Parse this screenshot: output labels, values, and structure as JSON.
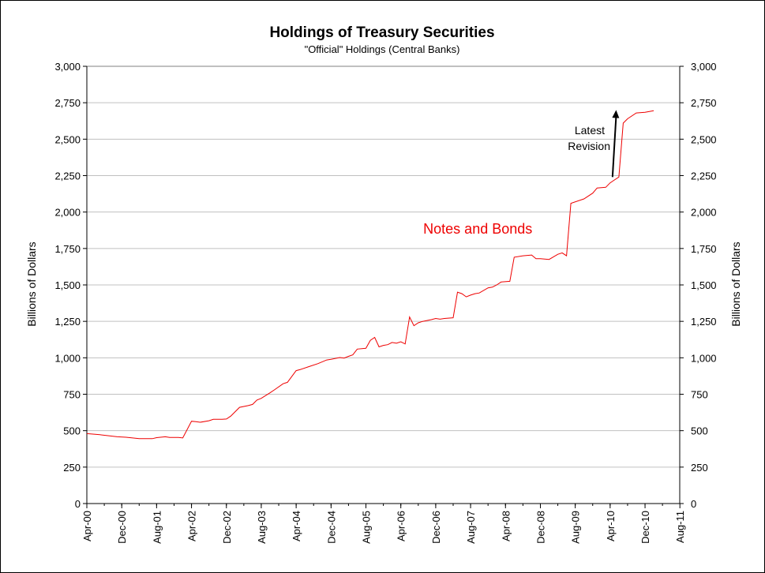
{
  "chart_data": {
    "type": "line",
    "title": "Holdings of Treasury Securities",
    "subtitle": "\"Official\" Holdings (Central Banks)",
    "ylabel": "Billions of Dollars",
    "ylabel_right": "Billions of Dollars",
    "xlabel": "",
    "ylim": [
      0,
      3000
    ],
    "y_ticks": [
      0,
      250,
      500,
      750,
      1000,
      1250,
      1500,
      1750,
      2000,
      2250,
      2500,
      2750,
      3000
    ],
    "y_tick_labels": [
      "0",
      "250",
      "500",
      "750",
      "1,000",
      "1,250",
      "1,500",
      "1,750",
      "2,000",
      "2,250",
      "2,500",
      "2,750",
      "3,000"
    ],
    "x_range": [
      2000.25,
      2011.58
    ],
    "x_ticks": [
      2000.25,
      2000.917,
      2001.583,
      2002.25,
      2002.917,
      2003.583,
      2004.25,
      2004.917,
      2005.583,
      2006.25,
      2006.917,
      2007.583,
      2008.25,
      2008.917,
      2009.583,
      2010.25,
      2010.917,
      2011.583
    ],
    "x_tick_labels": [
      "Apr-00",
      "Dec-00",
      "Aug-01",
      "Apr-02",
      "Dec-02",
      "Aug-03",
      "Apr-04",
      "Dec-04",
      "Aug-05",
      "Apr-06",
      "Dec-06",
      "Aug-07",
      "Apr-08",
      "Dec-08",
      "Aug-09",
      "Apr-10",
      "Dec-10",
      "Aug-11"
    ],
    "grid": true,
    "series": [
      {
        "name": "Notes and Bonds",
        "color": "#ee0000",
        "x": [
          2000.25,
          2000.5,
          2000.75,
          2000.833,
          2001.0,
          2001.25,
          2001.5,
          2001.583,
          2001.75,
          2001.833,
          2002.0,
          2002.083,
          2002.25,
          2002.333,
          2002.417,
          2002.583,
          2002.667,
          2002.833,
          2002.917,
          2003.0,
          2003.167,
          2003.333,
          2003.417,
          2003.5,
          2003.583,
          2003.75,
          2003.833,
          2004.0,
          2004.083,
          2004.25,
          2004.333,
          2004.5,
          2004.667,
          2004.833,
          2004.917,
          2005.083,
          2005.167,
          2005.25,
          2005.333,
          2005.417,
          2005.583,
          2005.667,
          2005.75,
          2005.833,
          2005.917,
          2006.0,
          2006.083,
          2006.167,
          2006.25,
          2006.333,
          2006.417,
          2006.5,
          2006.583,
          2006.667,
          2006.833,
          2006.917,
          2007.0,
          2007.083,
          2007.25,
          2007.333,
          2007.417,
          2007.5,
          2007.583,
          2007.667,
          2007.75,
          2007.917,
          2008.0,
          2008.083,
          2008.167,
          2008.333,
          2008.417,
          2008.583,
          2008.75,
          2008.833,
          2008.917,
          2009.083,
          2009.25,
          2009.333,
          2009.417,
          2009.5,
          2009.75,
          2009.917,
          2010.0,
          2010.167,
          2010.25,
          2010.333,
          2010.417,
          2010.5,
          2010.583,
          2010.75,
          2010.917,
          2011.0,
          2011.083
        ],
        "values": [
          480,
          472,
          462,
          458,
          455,
          445,
          445,
          452,
          458,
          453,
          453,
          450,
          565,
          562,
          558,
          568,
          578,
          578,
          580,
          600,
          660,
          672,
          680,
          710,
          722,
          760,
          780,
          822,
          832,
          912,
          920,
          940,
          960,
          985,
          990,
          1002,
          998,
          1010,
          1020,
          1060,
          1065,
          1120,
          1140,
          1075,
          1085,
          1090,
          1105,
          1100,
          1110,
          1095,
          1280,
          1220,
          1240,
          1250,
          1262,
          1270,
          1265,
          1270,
          1275,
          1450,
          1440,
          1418,
          1430,
          1440,
          1445,
          1480,
          1485,
          1500,
          1520,
          1525,
          1690,
          1700,
          1705,
          1680,
          1680,
          1675,
          1710,
          1720,
          1700,
          2060,
          2090,
          2130,
          2165,
          2170,
          2200,
          2220,
          2240,
          2610,
          2640,
          2680,
          2685,
          2690,
          2695
        ]
      }
    ],
    "annotations": [
      {
        "text_lines": [
          "Latest",
          "Revision"
        ],
        "arrow_from": [
          2010.25,
          2240
        ],
        "arrow_to": [
          2010.5,
          2700
        ]
      },
      {
        "text": "Notes and Bonds",
        "at": [
          2008.083,
          1875
        ]
      }
    ]
  }
}
